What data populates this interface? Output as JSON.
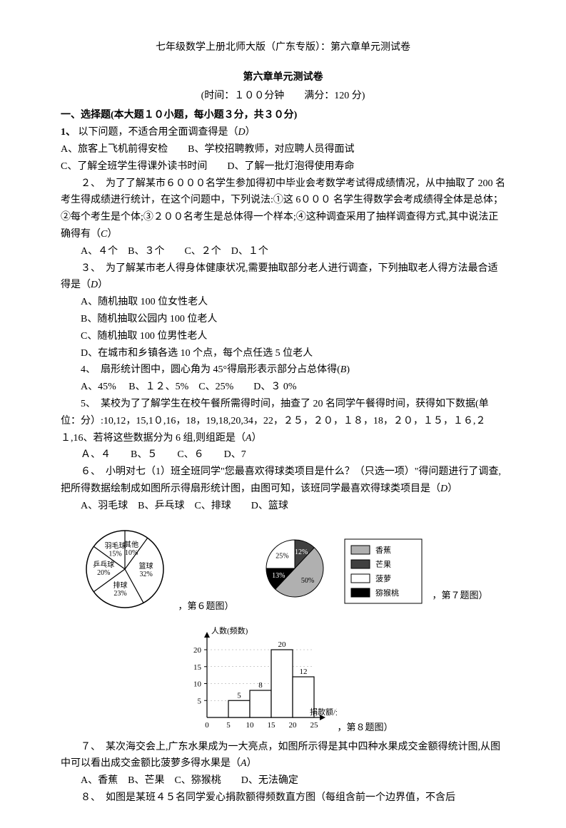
{
  "header": {
    "book_title": "七年级数学上册北师大版（广东专版）：第六章单元测试卷",
    "chapter_title": "第六章单元测试卷",
    "time_score": "(时间：１００分钟　　满分：120 分)"
  },
  "section1": {
    "title": "一、选择题(本大题１０小题，每小题３分，共３０分)"
  },
  "q1": {
    "stem_a": "1、",
    "stem_b": "以下问题，不适合用全面调查得是（",
    "answer": "D",
    "stem_c": "）",
    "optA": "A、旅客上飞机前得安检　　B、学校招聘教师，对应聘人员得面试",
    "optC": "C、了解全班学生得课外读书时间　　D、了解一批灯泡得使用寿命"
  },
  "q2": {
    "stem_a": "２、　为了了解某市６０００名学生参加得初中毕业会考数学考试得成绩情况，从中抽取了 200 名考生得成绩进行统计，在这个问题中，下列说法:①这 6０００ 名学生得数学会考成绩得全体是总体；②每个考生是个体;③２００名考生是总体得一个样本;④这种调查采用了抽样调查得方式,其中说法正确得有（",
    "answer": "C",
    "stem_b": "）",
    "opts": "A、４个　B、３个　　C、２个　D、１个"
  },
  "q3": {
    "stem_a": "３、　为了解某市老人得身体健康状况,需要抽取部分老人进行调查，下列抽取老人得方法最合适得是（",
    "answer": "D",
    "stem_b": "）",
    "optA": "A、随机抽取 100 位女性老人",
    "optB": "B、随机抽取公园内 100 位老人",
    "optC": "C、随机抽取 100 位男性老人",
    "optD": "D、在城市和乡镇各选 10 个点，每个点任选 5 位老人"
  },
  "q4": {
    "stem_a": "4、　扇形统计图中，圆心角为 45°得扇形表示部分占总体得(",
    "answer": "B",
    "stem_b": ")",
    "opts": "A、45%　 B、１２、5%　C、25%　　D、３ 0%"
  },
  "q5": {
    "stem_a": "5、　某校为了了解学生在校午餐所需得时间，抽查了 20 名同学午餐得时间，获得如下数据(单位：分）:10,12，15,1０,16，18，19,18,20,34，22，２５，２０，１８，18，２０，１５，１６,２１,16、若将这些数据分为 6 组,则组距是（",
    "answer": "A",
    "stem_b": "）",
    "opts": "Ａ、４　　B、５　　C、６　　D、7"
  },
  "q6": {
    "stem_a": "６、　小明对七（1）班全班同学\"您最喜欢得球类项目是什么？（只选一项）\"得问题进行了调查,把所得数据绘制成如图所示得扇形统计图，由图可知，该班同学最喜欢得球类项目是（",
    "answer": "D",
    "stem_b": "）",
    "opts": "A、羽毛球　B、乒乓球　C、排球　　D、篮球"
  },
  "q7": {
    "stem_a": "７、　某次海交会上,广东水果成为一大亮点，如图所示得是其中四种水果成交金额得统计图,从图中可以看出成交金额比菠萝多得水果是（",
    "answer": "A",
    "stem_b": "）",
    "opts": "A、香蕉　B、芒果　C、猕猴桃　　D、无法确定"
  },
  "q8": {
    "stem": "８、　如图是某班４５名同学爱心捐款额得频数直方图（每组含前一个边界值，不含后"
  },
  "fig6": {
    "caption": "，第６题图）",
    "labels": {
      "other": "其他",
      "other_pct": "10%",
      "basketball": "篮球",
      "basketball_pct": "32%",
      "badminton": "羽毛球",
      "badminton_pct": "15%",
      "pingpong": "乒乓球",
      "pingpong_pct": "20%",
      "volleyball": "排球",
      "volleyball_pct": "23%"
    },
    "colors": {
      "fill": "#ffffff",
      "stroke": "#000000",
      "text": "#000000"
    },
    "angles_deg": {
      "other": 36,
      "basketball": 115.2,
      "volleyball": 82.8,
      "pingpong": 72,
      "badminton": 54
    }
  },
  "fig7": {
    "caption": "，第７题图）",
    "pie": {
      "slices": [
        {
          "label": "12%",
          "value": 12,
          "color": "#404040"
        },
        {
          "label": "50%",
          "value": 50,
          "color": "#b0b0b0"
        },
        {
          "label": "13%",
          "value": 13,
          "color": "#000000"
        },
        {
          "label": "25%",
          "value": 25,
          "color": "#ffffff"
        }
      ],
      "stroke": "#000000"
    },
    "legend": [
      {
        "label": "香蕉",
        "color": "#b0b0b0"
      },
      {
        "label": "芒果",
        "color": "#404040"
      },
      {
        "label": "菠萝",
        "color": "#ffffff"
      },
      {
        "label": "猕猴桃",
        "color": "#000000"
      }
    ]
  },
  "fig8": {
    "caption": "，第８题图）",
    "ylabel": "人数(频数)",
    "xlabel": "捐款额/元",
    "xticks": [
      "0",
      "5",
      "10",
      "15",
      "20",
      "25"
    ],
    "bars": [
      {
        "x": 5,
        "value": 5,
        "label": "5"
      },
      {
        "x": 10,
        "value": 8,
        "label": "8"
      },
      {
        "x": 15,
        "value": 20,
        "label": "20"
      },
      {
        "x": 20,
        "value": 12,
        "label": "12"
      }
    ],
    "yticks": [
      5,
      10,
      15,
      20
    ],
    "ylim": [
      0,
      24
    ],
    "colors": {
      "bar_fill": "#ffffff",
      "stroke": "#000000",
      "text": "#000000"
    }
  }
}
